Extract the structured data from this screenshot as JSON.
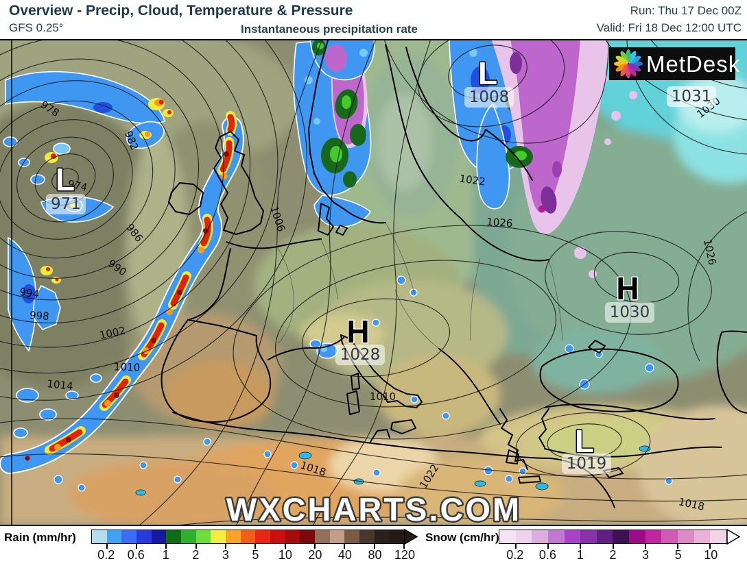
{
  "header": {
    "title": "Overview - Precip, Cloud, Temperature & Pressure",
    "model": "GFS 0.25°",
    "field_label": "Instantaneous precipitation rate",
    "run_line": "Run: Thu 17 Dec 00Z",
    "valid_line": "Valid: Fri 18 Dec 12:00 UTC"
  },
  "map": {
    "watermark": "WXCHARTS.COM",
    "logo_text": "MetDesk",
    "pressure_centers": [
      {
        "letter": "L",
        "value": "971"
      },
      {
        "letter": "L",
        "value": "1008"
      },
      {
        "letter": "H",
        "value": "1028"
      },
      {
        "letter": "H",
        "value": "1030"
      },
      {
        "letter": "L",
        "value": "1019"
      },
      {
        "letter": "",
        "value": "1031"
      }
    ],
    "contour_labels": [
      {
        "text": "978"
      },
      {
        "text": "982"
      },
      {
        "text": "986"
      },
      {
        "text": "990"
      },
      {
        "text": "994"
      },
      {
        "text": "998"
      },
      {
        "text": "1002"
      },
      {
        "text": "1006"
      },
      {
        "text": "1010"
      },
      {
        "text": "1014"
      },
      {
        "text": "1010"
      },
      {
        "text": "1018"
      },
      {
        "text": "1022"
      },
      {
        "text": "1018"
      },
      {
        "text": "1022"
      },
      {
        "text": "1026"
      },
      {
        "text": "1026"
      },
      {
        "text": "1030"
      },
      {
        "text": "974"
      }
    ]
  },
  "legend": {
    "rain": {
      "label": "Rain (mm/hr)",
      "ticks": [
        "0.2",
        "0.6",
        "1",
        "2",
        "3",
        "5",
        "10",
        "20",
        "40",
        "80",
        "120"
      ],
      "colors": [
        "#b8dcec",
        "#42a2f2",
        "#3c6cf0",
        "#2a3ad8",
        "#18189c",
        "#0f6b16",
        "#2fae2f",
        "#6ede3a",
        "#f4ec3e",
        "#f7a229",
        "#ee5f17",
        "#e52713",
        "#c81010",
        "#a30c0c",
        "#7a0a0a",
        "#93705a",
        "#c49e87",
        "#7b5a44",
        "#4a372b",
        "#2b211c",
        "#241b15"
      ],
      "arrow_color": "#241b15"
    },
    "snow": {
      "label": "Snow (cm/hr)",
      "ticks": [
        "0.2",
        "0.6",
        "1",
        "2",
        "3",
        "5",
        "10"
      ],
      "colors": [
        "#f4e3f2",
        "#edd4ec",
        "#dcaede",
        "#c177d4",
        "#a743c6",
        "#8832aa",
        "#5f2180",
        "#3d1150",
        "#9c0d85",
        "#c026a0",
        "#cf5cb2",
        "#dc8ac4",
        "#e9b2d8",
        "#f2d4e8"
      ],
      "arrow_color": "#ffffff"
    }
  }
}
